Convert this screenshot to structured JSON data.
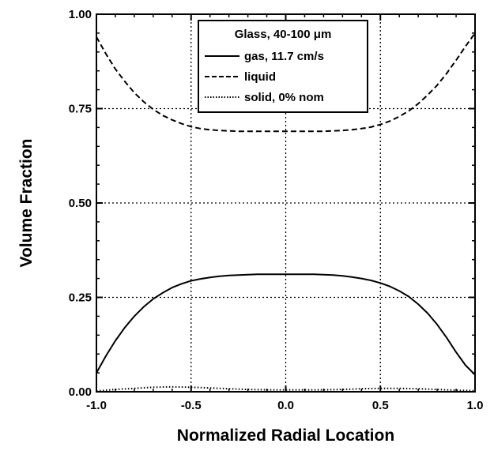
{
  "chart_data": {
    "type": "line",
    "xlabel": "Normalized Radial Location",
    "ylabel": "Volume Fraction",
    "xlim": [
      -1.0,
      1.0
    ],
    "ylim": [
      0.0,
      1.0
    ],
    "xticks": [
      -1.0,
      -0.5,
      0.0,
      0.5,
      1.0
    ],
    "xtick_labels": [
      "-1.0",
      "-0.5",
      "0.0",
      "0.5",
      "1.0"
    ],
    "yticks": [
      0.0,
      0.25,
      0.5,
      0.75,
      1.0
    ],
    "ytick_labels": [
      "0.00",
      "0.25",
      "0.50",
      "0.75",
      "1.00"
    ],
    "grid": true,
    "legend": {
      "position": "top-center",
      "title": "Glass, 40-100 μm",
      "entries": [
        "gas, 11.7 cm/s",
        "liquid",
        "solid, 0% nom"
      ]
    },
    "series": [
      {
        "name": "gas, 11.7 cm/s",
        "linestyle": "solid",
        "color": "#000000",
        "x": [
          -1.0,
          -0.95,
          -0.9,
          -0.85,
          -0.8,
          -0.75,
          -0.7,
          -0.65,
          -0.6,
          -0.55,
          -0.5,
          -0.45,
          -0.4,
          -0.35,
          -0.3,
          -0.25,
          -0.2,
          -0.15,
          -0.1,
          -0.05,
          0.0,
          0.05,
          0.1,
          0.15,
          0.2,
          0.25,
          0.3,
          0.35,
          0.4,
          0.45,
          0.5,
          0.55,
          0.6,
          0.65,
          0.7,
          0.75,
          0.8,
          0.85,
          0.9,
          0.95,
          1.0
        ],
        "y": [
          0.05,
          0.095,
          0.135,
          0.17,
          0.2,
          0.225,
          0.246,
          0.262,
          0.276,
          0.286,
          0.294,
          0.299,
          0.303,
          0.306,
          0.308,
          0.309,
          0.31,
          0.311,
          0.311,
          0.311,
          0.311,
          0.311,
          0.311,
          0.311,
          0.31,
          0.309,
          0.307,
          0.304,
          0.3,
          0.295,
          0.288,
          0.279,
          0.267,
          0.252,
          0.232,
          0.208,
          0.178,
          0.143,
          0.105,
          0.07,
          0.045
        ]
      },
      {
        "name": "liquid",
        "linestyle": "dashed",
        "color": "#000000",
        "x": [
          -1.0,
          -0.95,
          -0.9,
          -0.85,
          -0.8,
          -0.75,
          -0.7,
          -0.65,
          -0.6,
          -0.55,
          -0.5,
          -0.45,
          -0.4,
          -0.35,
          -0.3,
          -0.25,
          -0.2,
          -0.15,
          -0.1,
          -0.05,
          0.0,
          0.05,
          0.1,
          0.15,
          0.2,
          0.25,
          0.3,
          0.35,
          0.4,
          0.45,
          0.5,
          0.55,
          0.6,
          0.65,
          0.7,
          0.75,
          0.8,
          0.85,
          0.9,
          0.95,
          1.0
        ],
        "y": [
          0.94,
          0.895,
          0.855,
          0.822,
          0.792,
          0.768,
          0.748,
          0.732,
          0.72,
          0.71,
          0.702,
          0.697,
          0.694,
          0.692,
          0.691,
          0.69,
          0.69,
          0.69,
          0.69,
          0.69,
          0.69,
          0.69,
          0.69,
          0.69,
          0.69,
          0.691,
          0.692,
          0.694,
          0.697,
          0.701,
          0.708,
          0.717,
          0.729,
          0.744,
          0.763,
          0.786,
          0.812,
          0.843,
          0.878,
          0.915,
          0.95
        ]
      },
      {
        "name": "solid, 0% nom",
        "linestyle": "dotted",
        "color": "#000000",
        "x": [
          -1.0,
          -0.9,
          -0.8,
          -0.7,
          -0.6,
          -0.5,
          -0.4,
          -0.3,
          -0.2,
          -0.1,
          0.0,
          0.1,
          0.2,
          0.3,
          0.4,
          0.5,
          0.6,
          0.7,
          0.8,
          0.9,
          1.0
        ],
        "y": [
          0.002,
          0.006,
          0.009,
          0.012,
          0.013,
          0.012,
          0.01,
          0.008,
          0.006,
          0.005,
          0.005,
          0.005,
          0.005,
          0.006,
          0.008,
          0.009,
          0.009,
          0.008,
          0.006,
          0.004,
          0.003
        ]
      }
    ]
  }
}
